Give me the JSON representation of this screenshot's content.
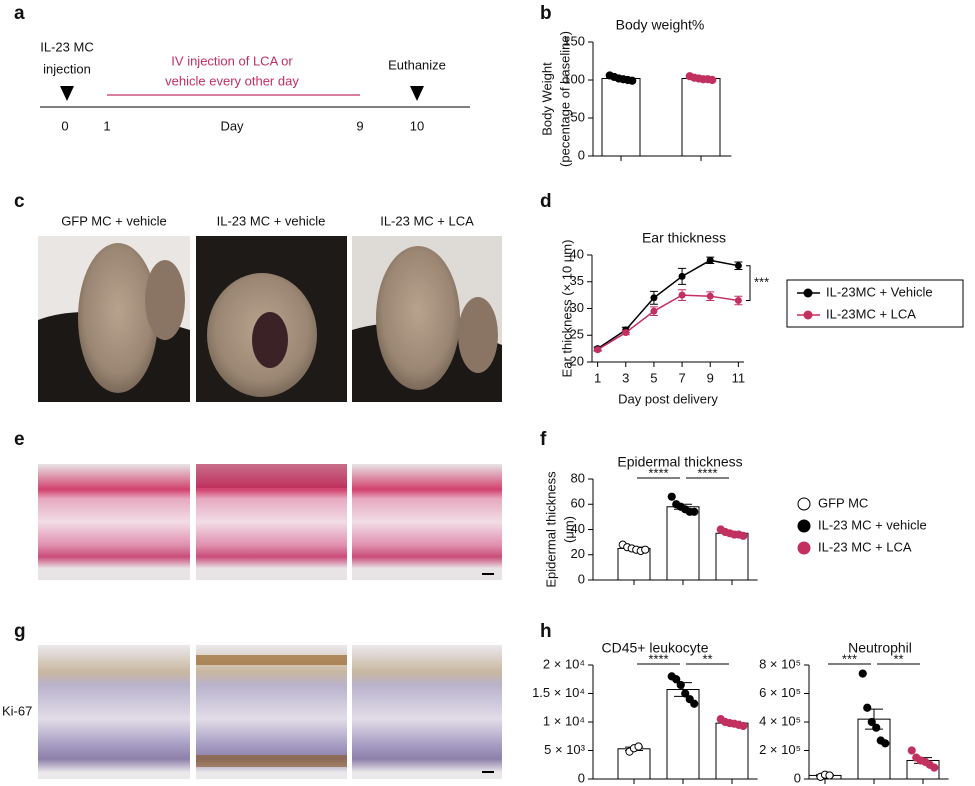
{
  "panel_labels": [
    "a",
    "b",
    "c",
    "d",
    "e",
    "f",
    "g",
    "h"
  ],
  "timeline": {
    "start_label": [
      "IL-23 MC",
      "injection"
    ],
    "treatment_label": [
      "IV injection of LCA or",
      "vehicle every other day"
    ],
    "end_label": "Euthanize",
    "ticks": [
      "0",
      "1",
      "9",
      "10"
    ],
    "axis_label": "Day"
  },
  "photos": {
    "column_labels": [
      "GFP MC + vehicle",
      "IL-23 MC + vehicle",
      "IL-23 MC + LCA"
    ],
    "stain_label": "Ki-67"
  },
  "chart_data": [
    {
      "type": "bar",
      "title": "Body weight%",
      "ylabel": [
        "Body Weight",
        "(pecentage of baseline)"
      ],
      "categories": [
        null,
        null
      ],
      "values": [
        102,
        102
      ],
      "errors": [
        1.2,
        0.8
      ],
      "points": [
        [
          106,
          104,
          102,
          101,
          100,
          99
        ],
        [
          105,
          103,
          102,
          101,
          101,
          100
        ]
      ],
      "bar_colors": [
        "#ffffff",
        "#ffffff"
      ],
      "point_colors": [
        "#000000",
        "#c2305f"
      ],
      "ylim": [
        0,
        150
      ],
      "yticks": [
        0,
        50,
        100,
        150
      ]
    },
    {
      "type": "line",
      "title": "Ear thickness",
      "xlabel": "Day post delivery",
      "ylabel": [
        "Ear thickness (× 10 μm)"
      ],
      "x": [
        1,
        3,
        5,
        7,
        9,
        11
      ],
      "series": [
        {
          "name": "IL-23MC + Vehicle",
          "color": "#000000",
          "values": [
            22.5,
            26,
            32,
            36,
            39,
            38
          ],
          "errors": [
            0.3,
            0.5,
            1.2,
            1.5,
            0.6,
            0.7
          ]
        },
        {
          "name": "IL-23MC + LCA",
          "color": "#c2305f",
          "values": [
            22.3,
            25.5,
            29.5,
            32.5,
            32.3,
            31.5
          ],
          "errors": [
            0.3,
            0.4,
            0.8,
            1,
            0.8,
            0.8
          ]
        }
      ],
      "xlim": [
        0.6,
        11.4
      ],
      "ylim": [
        20,
        40
      ],
      "xticks": [
        1,
        3,
        5,
        7,
        9,
        11
      ],
      "yticks": [
        20,
        25,
        30,
        35,
        40
      ],
      "annotation": "***"
    },
    {
      "type": "bar",
      "title": "Epidermal thickness",
      "ylabel": [
        "Epidermal thickness",
        "(μm)"
      ],
      "categories": [
        null,
        null,
        null
      ],
      "values": [
        25,
        58,
        37
      ],
      "errors": [
        1,
        2,
        1
      ],
      "points": [
        [
          28,
          26,
          25,
          24,
          23,
          24
        ],
        [
          66,
          60,
          58,
          56,
          54,
          54
        ],
        [
          40,
          38,
          37,
          36,
          36,
          35
        ]
      ],
      "bar_colors": [
        "#ffffff",
        "#ffffff",
        "#ffffff"
      ],
      "point_colors": [
        "#ffffff",
        "#000000",
        "#c2305f"
      ],
      "ylim": [
        0,
        80
      ],
      "yticks": [
        0,
        20,
        40,
        60,
        80
      ],
      "annotations": [
        "****",
        "****"
      ],
      "legend": [
        {
          "name": "GFP MC",
          "color": "#ffffff"
        },
        {
          "name": "IL-23 MC + vehicle",
          "color": "#000000"
        },
        {
          "name": "IL-23 MC + LCA",
          "color": "#c2305f"
        }
      ]
    },
    {
      "type": "bar",
      "title": "CD45+ leukocyte",
      "ylabel": [],
      "categories": [
        null,
        null,
        null
      ],
      "values": [
        5300,
        15700,
        9800
      ],
      "errors": [
        300,
        1200,
        300
      ],
      "points": [
        [
          4800,
          5400,
          5700
        ],
        [
          18000,
          17500,
          16500,
          15000,
          14000,
          13200
        ],
        [
          10500,
          10000,
          9800,
          9700,
          9500,
          9300
        ]
      ],
      "bar_colors": [
        "#ffffff",
        "#ffffff",
        "#ffffff"
      ],
      "point_colors": [
        "#ffffff",
        "#000000",
        "#c2305f"
      ],
      "ylim": [
        0,
        20000
      ],
      "yticks": [
        0,
        {
          "value": 5000,
          "label": "5 × 10³"
        },
        {
          "value": 10000,
          "label": "1 × 10⁴"
        },
        {
          "value": 15000,
          "label": "1.5 × 10⁴"
        },
        {
          "value": 20000,
          "label": "2 × 10⁴"
        }
      ],
      "annotations": [
        "****",
        "**"
      ]
    },
    {
      "type": "bar",
      "title": "Neutrophil",
      "ylabel": [],
      "categories": [
        null,
        null,
        null
      ],
      "values": [
        25000,
        420000,
        130000
      ],
      "errors": [
        5000,
        70000,
        20000
      ],
      "points": [
        [
          15000,
          30000,
          25000
        ],
        [
          740000,
          500000,
          400000,
          360000,
          270000,
          250000
        ],
        [
          200000,
          150000,
          130000,
          120000,
          100000,
          80000
        ]
      ],
      "bar_colors": [
        "#ffffff",
        "#ffffff",
        "#ffffff"
      ],
      "point_colors": [
        "#ffffff",
        "#000000",
        "#c2305f"
      ],
      "ylim": [
        0,
        800000
      ],
      "yticks": [
        0,
        {
          "value": 200000,
          "label": "2 × 10⁵"
        },
        {
          "value": 400000,
          "label": "4 × 10⁵"
        },
        {
          "value": 600000,
          "label": "6 × 10⁵"
        },
        {
          "value": 800000,
          "label": "8 × 10⁵"
        }
      ],
      "annotations": [
        "***",
        "**"
      ]
    }
  ]
}
